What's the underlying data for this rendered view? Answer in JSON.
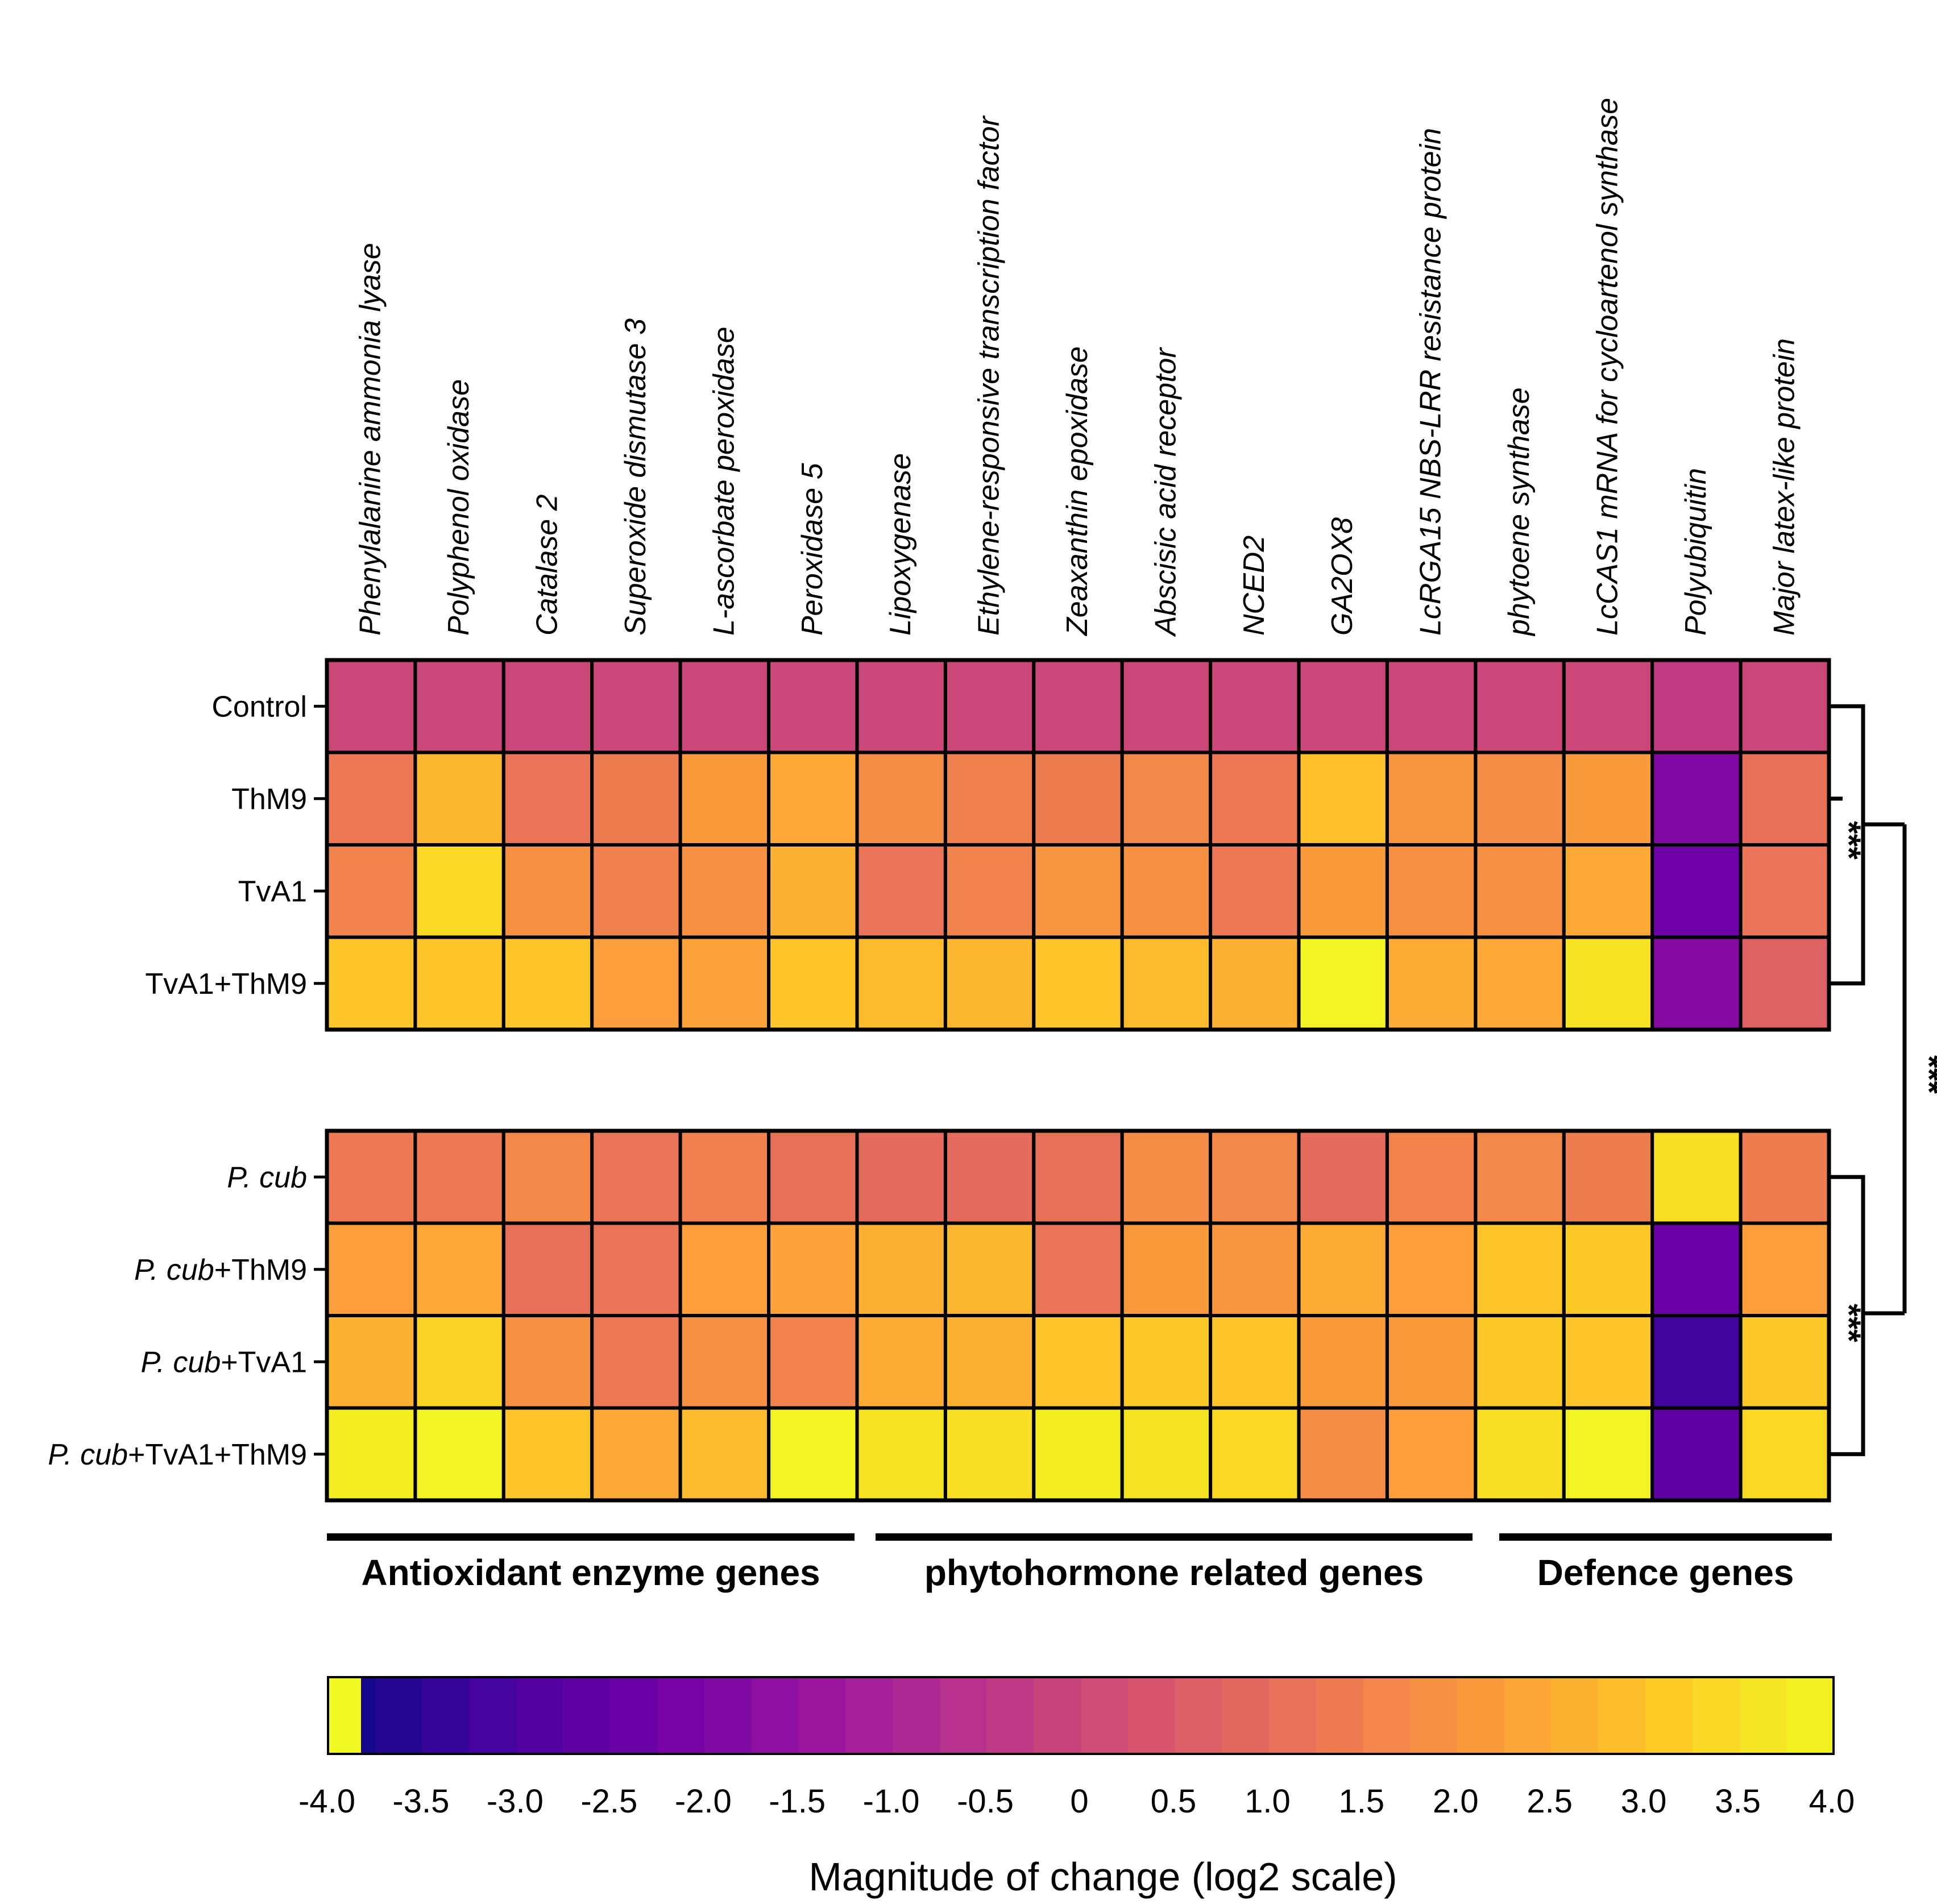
{
  "chart_data": {
    "type": "heatmap",
    "columns": [
      "Phenylalanine ammonia lyase",
      "Polyphenol oxidase",
      "Catalase 2",
      "Superoxide dismutase 3",
      "L-ascorbate peroxidase",
      "Peroxidase 5",
      "Lipoxygenase",
      "Ethylene-responsive transcription factor",
      "Zeaxanthin epoxidase",
      "Abscisic acid receptor",
      "NCED2",
      "GA2OX8",
      "LcRGA15 NBS-LRR resistance protein",
      "phytoene synthase",
      "LcCAS1 mRNA for cycloartenol synthase",
      "Polyubiquitin",
      "Major latex-like protein"
    ],
    "blocks": [
      {
        "rows": [
          {
            "pre": "",
            "ital": "",
            "post": "Control",
            "values": [
              0,
              0,
              0,
              0,
              0,
              0,
              0,
              0,
              0,
              0,
              0,
              0,
              0,
              0,
              0,
              -0.3,
              0
            ]
          },
          {
            "pre": "",
            "ital": "",
            "post": "ThM9",
            "values": [
              1.3,
              2.7,
              1.2,
              1.4,
              2.1,
              2.4,
              1.8,
              1.5,
              1.4,
              1.7,
              1.3,
              2.9,
              2.0,
              1.8,
              2.1,
              -1.9,
              1.1
            ]
          },
          {
            "pre": "",
            "ital": "",
            "post": "TvA1",
            "values": [
              1.6,
              3.4,
              1.9,
              1.5,
              1.9,
              2.6,
              1.2,
              1.6,
              2.0,
              1.9,
              1.3,
              2.1,
              1.9,
              1.9,
              2.4,
              -2.3,
              1.2
            ]
          },
          {
            "pre": "",
            "ital": "",
            "post": "TvA1+ThM9",
            "values": [
              3.0,
              3.0,
              3.0,
              2.2,
              2.3,
              3.0,
              2.8,
              2.7,
              3.0,
              2.8,
              2.6,
              3.9,
              2.5,
              2.4,
              3.6,
              -1.8,
              0.7
            ]
          }
        ]
      },
      {
        "rows": [
          {
            "pre": "",
            "ital": "P. cub",
            "post": "",
            "values": [
              1.3,
              1.3,
              1.7,
              1.2,
              1.5,
              1.1,
              1.0,
              1.0,
              1.1,
              1.8,
              1.7,
              1.0,
              1.6,
              1.7,
              1.4,
              3.5,
              1.4
            ]
          },
          {
            "pre": "",
            "ital": "P. cub",
            "post": "+ThM9",
            "values": [
              2.2,
              2.4,
              1.1,
              1.2,
              2.2,
              2.3,
              2.6,
              2.7,
              1.2,
              2.1,
              2.0,
              2.5,
              2.2,
              3.0,
              3.1,
              -2.4,
              2.2
            ]
          },
          {
            "pre": "",
            "ital": "P. cub",
            "post": "+TvA1",
            "values": [
              2.6,
              3.3,
              1.9,
              1.3,
              1.9,
              1.6,
              2.5,
              2.6,
              3.0,
              3.1,
              3.0,
              2.1,
              2.1,
              3.1,
              3.0,
              -3.2,
              3.1
            ]
          },
          {
            "pre": "",
            "ital": "P. cub",
            "post": "+TvA1+ThM9",
            "values": [
              3.8,
              3.9,
              3.0,
              2.4,
              2.8,
              3.9,
              3.6,
              3.5,
              3.8,
              3.6,
              3.4,
              1.8,
              2.2,
              3.5,
              3.9,
              -2.6,
              3.4
            ]
          }
        ]
      }
    ],
    "gene_groups": [
      {
        "label": "Antioxidant enzyme genes"
      },
      {
        "label": "phytohormone related genes"
      },
      {
        "label": "Defence genes"
      }
    ],
    "significance": {
      "top_block": "***",
      "bottom_block": "***",
      "between_blocks": "***"
    },
    "colorbar": {
      "title": "Magnitude of change (log2 scale)",
      "range": [
        -4.0,
        4.0
      ],
      "ticks": [
        "-4.0",
        "-3.5",
        "-3.0",
        "-2.5",
        "-2.0",
        "-1.5",
        "-1.0",
        "-0.5",
        "0",
        "0.5",
        "1.0",
        "1.5",
        "2.0",
        "2.5",
        "3.0",
        "3.5",
        "4.0"
      ],
      "stops": [
        "#0d0887",
        "#46039f",
        "#7201a8",
        "#9c179e",
        "#bd3786",
        "#d8576b",
        "#ed7953",
        "#fb9f3a",
        "#fdca26",
        "#f0f921"
      ]
    }
  }
}
